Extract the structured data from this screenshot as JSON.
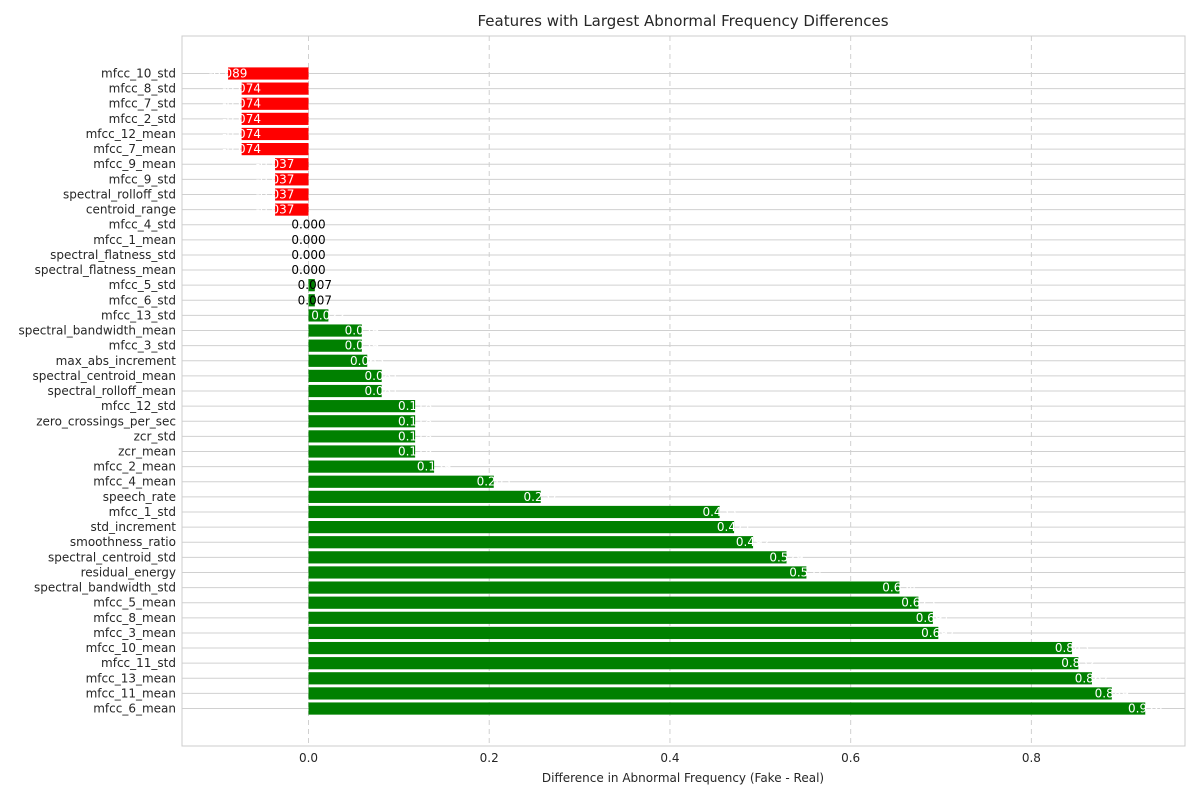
{
  "chart_data": {
    "type": "bar",
    "orientation": "horizontal",
    "title": "Features with Largest Abnormal Frequency Differences",
    "xlabel": "Difference in Abnormal Frequency (Fake - Real)",
    "ylabel": "",
    "xlim": [
      -0.14,
      0.97
    ],
    "xticks": [
      0.0,
      0.2,
      0.4,
      0.6,
      0.8
    ],
    "xtick_labels": [
      "0.0",
      "0.2",
      "0.4",
      "0.6",
      "0.8"
    ],
    "grid": true,
    "colors": {
      "positive": "#008000",
      "negative": "#ff0000",
      "zero": "#008000"
    },
    "categories": [
      "mfcc_10_std",
      "mfcc_8_std",
      "mfcc_7_std",
      "mfcc_2_std",
      "mfcc_12_mean",
      "mfcc_7_mean",
      "mfcc_9_mean",
      "mfcc_9_std",
      "spectral_rolloff_std",
      "centroid_range",
      "mfcc_4_std",
      "mfcc_1_mean",
      "spectral_flatness_std",
      "spectral_flatness_mean",
      "mfcc_5_std",
      "mfcc_6_std",
      "mfcc_13_std",
      "spectral_bandwidth_mean",
      "mfcc_3_std",
      "max_abs_increment",
      "spectral_centroid_mean",
      "spectral_rolloff_mean",
      "mfcc_12_std",
      "zero_crossings_per_sec",
      "zcr_std",
      "zcr_mean",
      "mfcc_2_mean",
      "mfcc_4_mean",
      "speech_rate",
      "mfcc_1_std",
      "std_increment",
      "smoothness_ratio",
      "spectral_centroid_std",
      "residual_energy",
      "spectral_bandwidth_std",
      "mfcc_5_mean",
      "mfcc_8_mean",
      "mfcc_3_mean",
      "mfcc_10_mean",
      "mfcc_11_std",
      "mfcc_13_mean",
      "mfcc_11_mean",
      "mfcc_6_mean"
    ],
    "values": [
      -0.089,
      -0.074,
      -0.074,
      -0.074,
      -0.074,
      -0.074,
      -0.037,
      -0.037,
      -0.037,
      -0.037,
      0.0,
      0.0,
      0.0,
      0.0,
      0.007,
      0.007,
      0.022,
      0.059,
      0.059,
      0.065,
      0.081,
      0.081,
      0.118,
      0.118,
      0.118,
      0.118,
      0.139,
      0.205,
      0.257,
      0.455,
      0.471,
      0.492,
      0.529,
      0.551,
      0.654,
      0.675,
      0.691,
      0.697,
      0.845,
      0.852,
      0.867,
      0.889,
      0.926
    ],
    "value_labels": [
      "-0.089",
      "-0.074",
      "-0.074",
      "-0.074",
      "-0.074",
      "-0.074",
      "-0.037",
      "-0.037",
      "-0.037",
      "-0.037",
      "0.000",
      "0.000",
      "0.000",
      "0.000",
      "0.007",
      "0.007",
      "0.022",
      "0.059",
      "0.059",
      "0.065",
      "0.081",
      "0.081",
      "0.118",
      "0.118",
      "0.118",
      "0.118",
      "0.139",
      "0.205",
      "0.257",
      "0.455",
      "0.471",
      "0.492",
      "0.529",
      "0.551",
      "0.654",
      "0.675",
      "0.691",
      "0.697",
      "0.845",
      "0.852",
      "0.867",
      "0.889",
      "0.926"
    ]
  }
}
